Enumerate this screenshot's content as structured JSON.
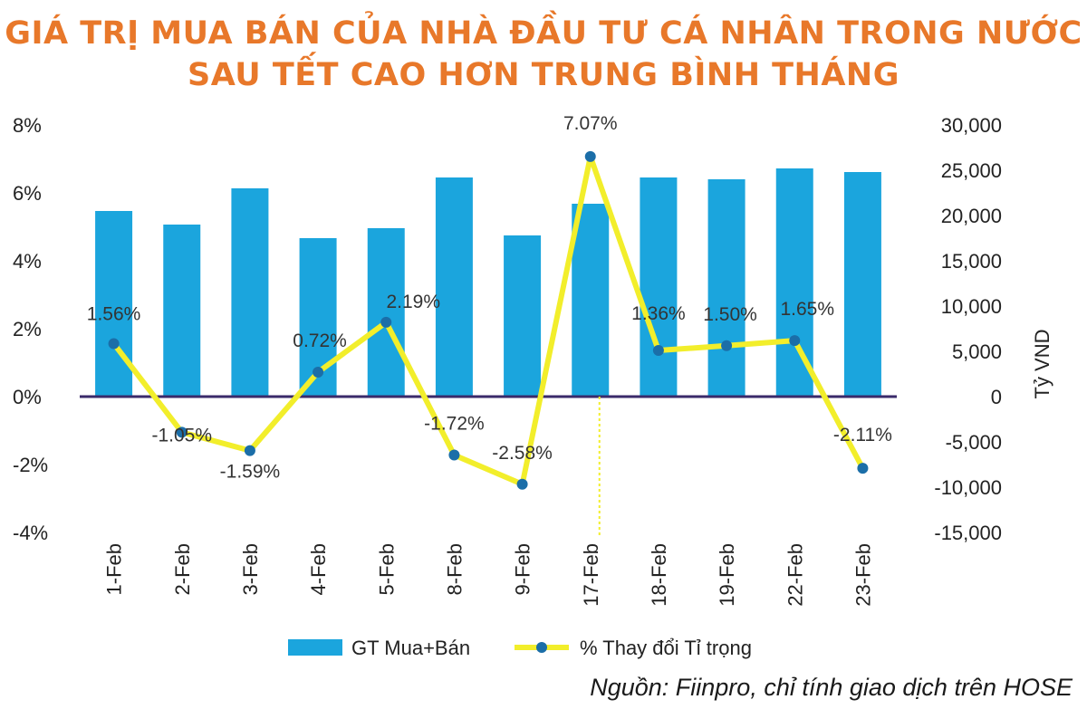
{
  "title": {
    "line1": "GIÁ TRỊ MUA BÁN CỦA NHÀ ĐẦU TƯ CÁ NHÂN TRONG NƯỚC",
    "line2": "SAU TẾT CAO HƠN TRUNG BÌNH THÁNG",
    "color": "#E8782A"
  },
  "source": "Nguồn: Fiinpro, chỉ tính giao dịch trên HOSE",
  "chart_data": {
    "type": "bar",
    "categories": [
      "1-Feb",
      "2-Feb",
      "3-Feb",
      "4-Feb",
      "5-Feb",
      "8-Feb",
      "9-Feb",
      "17-Feb",
      "18-Feb",
      "19-Feb",
      "22-Feb",
      "23-Feb"
    ],
    "series": [
      {
        "name": "GT Mua+Bán",
        "type": "bar",
        "axis": "right",
        "color": "#1BA5DD",
        "values": [
          20500,
          19000,
          23000,
          17500,
          18600,
          24200,
          17800,
          21300,
          24200,
          24000,
          25200,
          24800
        ]
      },
      {
        "name": "% Thay đổi Tỉ trọng",
        "type": "line",
        "axis": "left",
        "color": "#F2EE2B",
        "marker_color": "#1B6EA8",
        "values": [
          1.56,
          -1.05,
          -1.59,
          0.72,
          2.19,
          -1.72,
          -2.58,
          7.07,
          1.36,
          1.5,
          1.65,
          -2.11
        ],
        "labels": [
          "1.56%",
          "-1.05%",
          "-1.59%",
          "0.72%",
          "2.19%",
          "-1.72%",
          "-2.58%",
          "7.07%",
          "1.36%",
          "1.50%",
          "1.65%",
          "-2.11%"
        ]
      }
    ],
    "left_axis": {
      "ylim": [
        -4,
        8
      ],
      "ticks": [
        8,
        6,
        4,
        2,
        0,
        -2,
        -4
      ],
      "tick_labels": [
        "8%",
        "6%",
        "4%",
        "2%",
        "0%",
        "-2%",
        "-4%"
      ]
    },
    "right_axis": {
      "label": "Tỷ VND",
      "ylim": [
        -15000,
        30000
      ],
      "ticks": [
        30000,
        25000,
        20000,
        15000,
        10000,
        5000,
        0,
        -5000,
        -10000,
        -15000
      ],
      "tick_labels": [
        "30,000",
        "25,000",
        "20,000",
        "15,000",
        "10,000",
        "5,000",
        "0",
        "-5,000",
        "-10,000",
        "-15,000"
      ]
    },
    "legend": {
      "position": "bottom"
    },
    "grid": false,
    "zero_line_color": "#3A2A6A"
  }
}
